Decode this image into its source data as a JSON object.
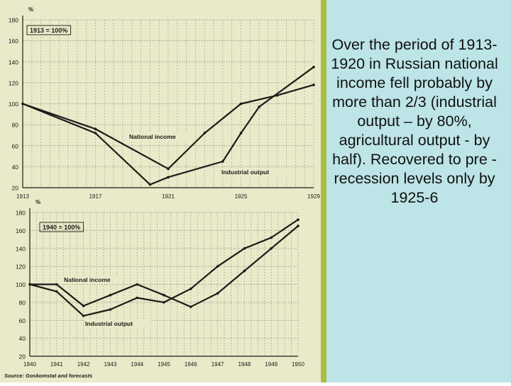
{
  "caption": "Over the period of 1913-1920 in Russian national income fell probably by more than 2/3 (industrial output – by 80%, agricultural output - by half). Recovered to pre -recession levels only by 1925-6",
  "colors": {
    "photo_bg": "#a8bf42",
    "paper": "#e9eac9",
    "ink": "#1b1b18",
    "grid": "#9a9c86",
    "caption_bg": "#bde4e7"
  },
  "chart_data": [
    {
      "type": "line",
      "ylabel": "%",
      "annotation": "1913 = 100%",
      "ylim": [
        20,
        180
      ],
      "yticks": [
        20,
        40,
        60,
        80,
        100,
        120,
        140,
        160,
        180
      ],
      "xlim": [
        1913,
        1929
      ],
      "xticks": [
        1913,
        1917,
        1921,
        1925,
        1929
      ],
      "xtick_labels": [
        "1913",
        "1917",
        "1921",
        "1925",
        "1929"
      ],
      "grid": true,
      "series": [
        {
          "name": "National income",
          "x": [
            1913,
            1917,
            1921,
            1923,
            1925,
            1927,
            1929
          ],
          "values": [
            100,
            76,
            38,
            72,
            100,
            108,
            118
          ]
        },
        {
          "name": "Industrial output",
          "x": [
            1913,
            1917,
            1920,
            1921,
            1924,
            1925,
            1926,
            1929
          ],
          "values": [
            100,
            72,
            23,
            30,
            45,
            72,
            97,
            135
          ]
        }
      ]
    },
    {
      "type": "line",
      "ylabel": "%",
      "annotation": "1940 = 100%",
      "ylim": [
        20,
        180
      ],
      "yticks": [
        20,
        40,
        60,
        80,
        100,
        120,
        140,
        160,
        180
      ],
      "xlim": [
        1940,
        1950
      ],
      "xticks": [
        1940,
        1941,
        1942,
        1943,
        1944,
        1945,
        1946,
        1947,
        1948,
        1949,
        1950
      ],
      "xtick_labels": [
        "1940",
        "1941",
        "1942",
        "1943",
        "1944",
        "1945",
        "1946",
        "1947",
        "1948",
        "1949",
        "1950"
      ],
      "grid": true,
      "source": "Source: Goskomstat and forecasts",
      "series": [
        {
          "name": "National income",
          "x": [
            1940,
            1941,
            1942,
            1943,
            1944,
            1945,
            1946,
            1947,
            1948,
            1949,
            1950
          ],
          "values": [
            100,
            100,
            76,
            88,
            100,
            88,
            75,
            90,
            115,
            140,
            165
          ]
        },
        {
          "name": "Industrial output",
          "x": [
            1940,
            1941,
            1942,
            1943,
            1944,
            1945,
            1946,
            1947,
            1948,
            1949,
            1950
          ],
          "values": [
            100,
            92,
            65,
            72,
            85,
            80,
            95,
            120,
            140,
            152,
            172
          ]
        }
      ]
    }
  ]
}
